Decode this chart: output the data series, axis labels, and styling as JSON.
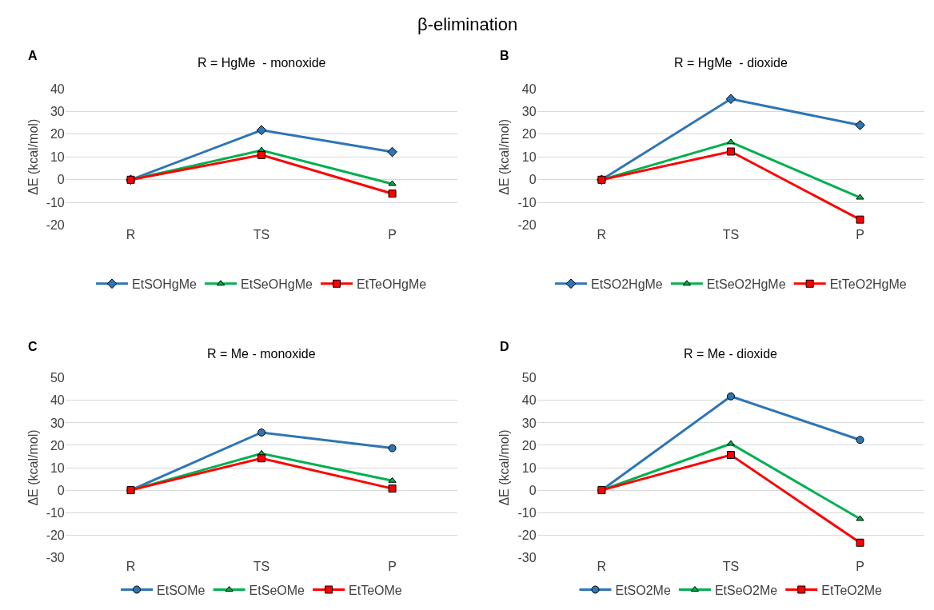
{
  "chart_data": [
    {
      "type": "line",
      "title": "β-elimination",
      "subtitle": "R = HgMe  - monoxide",
      "annotations": [
        "A"
      ],
      "ylabel": "ΔE (kcal/mol)",
      "categories": [
        "R",
        "TS",
        "P"
      ],
      "ylim": [
        -20,
        40
      ],
      "yticks": [
        -20,
        -10,
        0,
        10,
        20,
        30,
        40
      ],
      "grid": "y",
      "legend": "bottom",
      "series": [
        {
          "name": "EtSOHgMe",
          "color": "#2e75b6",
          "marker": "diamond",
          "values": [
            0,
            21.8,
            12.2
          ]
        },
        {
          "name": "EtSeOHgMe",
          "color": "#00b050",
          "marker": "triangle",
          "values": [
            0,
            12.9,
            -1.8
          ]
        },
        {
          "name": "EtTeOHgMe",
          "color": "#ff0000",
          "marker": "square",
          "values": [
            0,
            10.9,
            -6.1
          ]
        }
      ]
    },
    {
      "type": "line",
      "subtitle": "R = HgMe  - dioxide",
      "annotations": [
        "B"
      ],
      "ylabel": "ΔE (kcal/mol)",
      "categories": [
        "R",
        "TS",
        "P"
      ],
      "ylim": [
        -20,
        40
      ],
      "yticks": [
        -20,
        -10,
        0,
        10,
        20,
        30,
        40
      ],
      "grid": "y",
      "legend": "bottom",
      "series": [
        {
          "name": "EtSO2HgMe",
          "color": "#2e75b6",
          "marker": "diamond",
          "values": [
            0,
            35.5,
            24.0
          ]
        },
        {
          "name": "EtSeO2HgMe",
          "color": "#00b050",
          "marker": "triangle",
          "values": [
            0,
            16.5,
            -7.8
          ]
        },
        {
          "name": "EtTeO2HgMe",
          "color": "#ff0000",
          "marker": "square",
          "values": [
            0,
            12.4,
            -17.5
          ]
        }
      ]
    },
    {
      "type": "line",
      "subtitle": "R = Me - monoxide",
      "annotations": [
        "C"
      ],
      "ylabel": "ΔE (kcal/mol)",
      "categories": [
        "R",
        "TS",
        "P"
      ],
      "ylim": [
        -30,
        50
      ],
      "yticks": [
        -30,
        -20,
        -10,
        0,
        10,
        20,
        30,
        40,
        50
      ],
      "grid": "y",
      "legend": "bottom",
      "series": [
        {
          "name": "EtSOMe",
          "color": "#2e75b6",
          "marker": "circle",
          "values": [
            0,
            25.7,
            18.7
          ]
        },
        {
          "name": "EtSeOMe",
          "color": "#00b050",
          "marker": "triangle",
          "values": [
            0,
            16.3,
            4.2
          ]
        },
        {
          "name": "EtTeOMe",
          "color": "#ff0000",
          "marker": "square",
          "values": [
            0,
            14.2,
            0.7
          ]
        }
      ]
    },
    {
      "type": "line",
      "subtitle": "R = Me - dioxide",
      "annotations": [
        "D"
      ],
      "ylabel": "ΔE (kcal/mol)",
      "categories": [
        "R",
        "TS",
        "P"
      ],
      "ylim": [
        -30,
        50
      ],
      "yticks": [
        -30,
        -20,
        -10,
        0,
        10,
        20,
        30,
        40,
        50
      ],
      "grid": "y",
      "legend": "bottom",
      "series": [
        {
          "name": "EtSO2Me",
          "color": "#2e75b6",
          "marker": "circle",
          "values": [
            0,
            41.8,
            22.4
          ]
        },
        {
          "name": "EtSeO2Me",
          "color": "#00b050",
          "marker": "triangle",
          "values": [
            0,
            20.7,
            -12.8
          ]
        },
        {
          "name": "EtTeO2Me",
          "color": "#ff0000",
          "marker": "square",
          "values": [
            0,
            15.7,
            -23.4
          ]
        }
      ]
    }
  ]
}
